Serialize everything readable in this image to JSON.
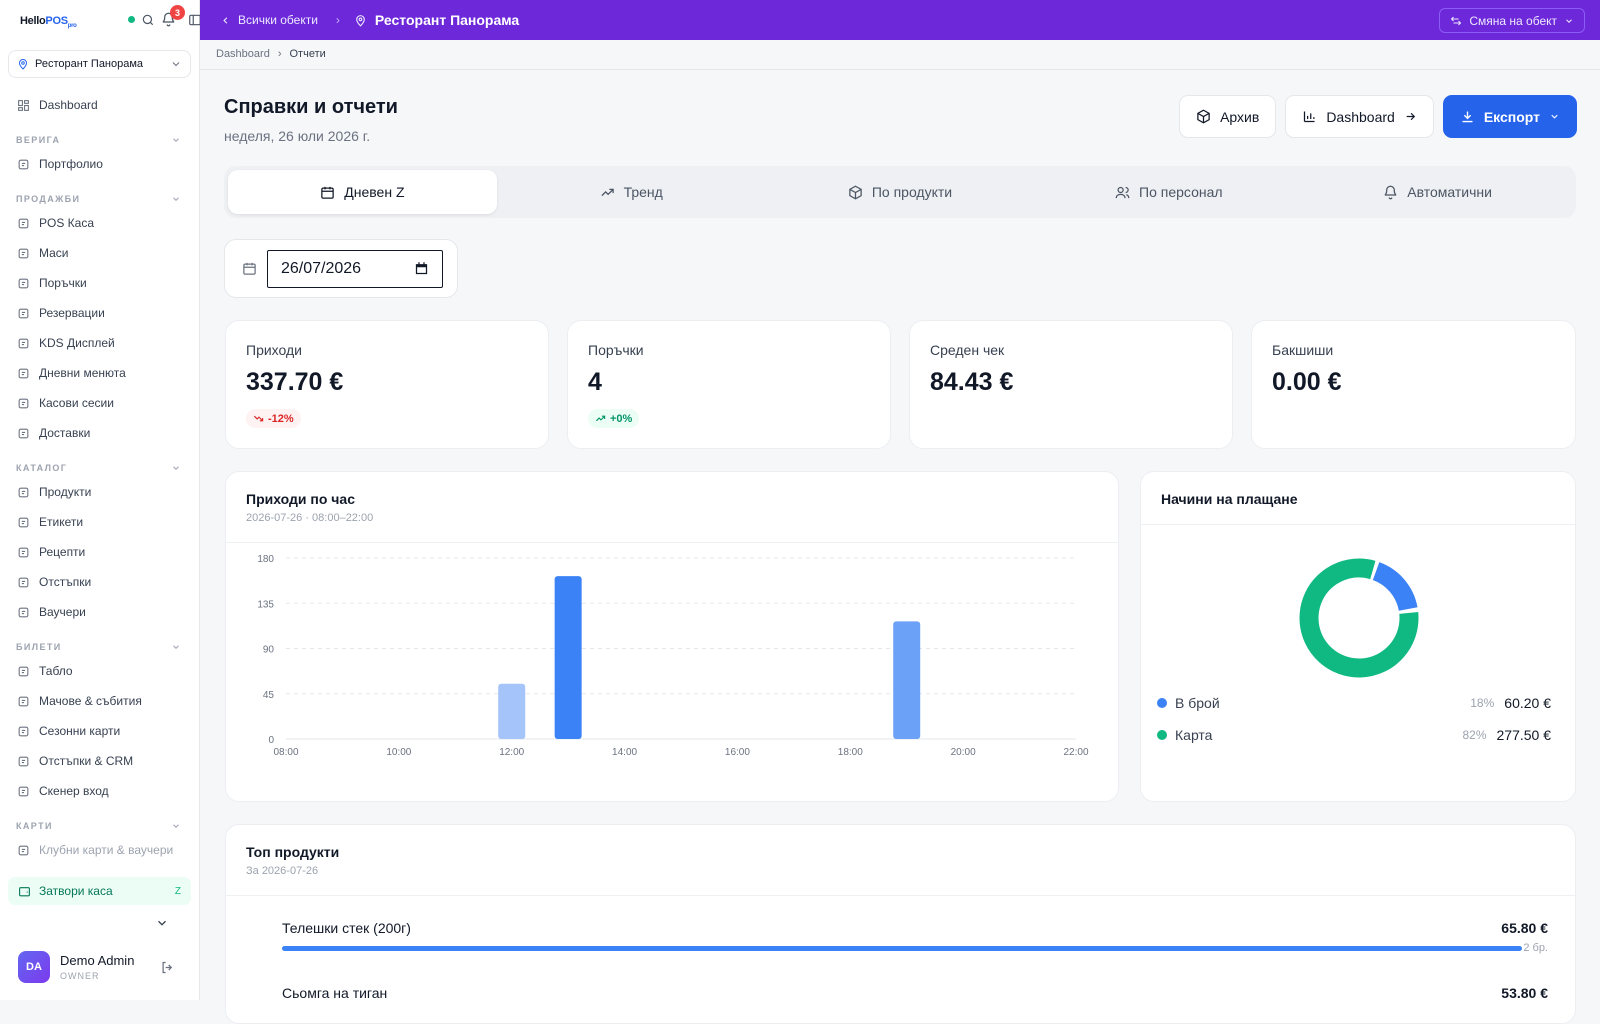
{
  "sidebar": {
    "logo": {
      "a": "Hello",
      "b": "POS",
      "c": "pro"
    },
    "notif_count": "3",
    "venue": "Ресторант Панорама",
    "dashboard": "Dashboard",
    "sections": [
      {
        "title": "ВЕРИГА",
        "items": [
          "Портфолио"
        ]
      },
      {
        "title": "ПРОДАЖБИ",
        "items": [
          "POS Каса",
          "Маси",
          "Поръчки",
          "Резервации",
          "KDS Дисплей",
          "Дневни менюта",
          "Касови сесии",
          "Доставки"
        ]
      },
      {
        "title": "КАТАЛОГ",
        "items": [
          "Продукти",
          "Етикети",
          "Рецепти",
          "Отстъпки",
          "Ваучери"
        ]
      },
      {
        "title": "БИЛЕТИ",
        "items": [
          "Табло",
          "Мачове & събития",
          "Сезонни карти",
          "Отстъпки & CRM",
          "Скенер вход"
        ]
      },
      {
        "title": "КАРТИ",
        "items": [
          "Клубни карти & ваучери"
        ]
      }
    ],
    "close_register": "Затвори каса",
    "close_register_key": "Z",
    "user": {
      "initials": "DA",
      "name": "Demo Admin",
      "role": "OWNER"
    }
  },
  "topbar": {
    "back": "Всички обекти",
    "title": "Ресторант Панорама",
    "switch": "Смяна на обект"
  },
  "breadcrumb": {
    "root": "Dashboard",
    "current": "Отчети"
  },
  "page": {
    "title": "Справки и отчети",
    "date": "неделя, 26 юли 2026 г.",
    "buttons": {
      "archive": "Архив",
      "dashboard": "Dashboard",
      "export": "Експорт"
    }
  },
  "tabs": [
    "Дневен Z",
    "Тренд",
    "По продукти",
    "По персонал",
    "Автоматични"
  ],
  "date_input": "26/07/2026",
  "kpis": [
    {
      "label": "Приходи",
      "value": "337.70 €",
      "delta": "-12%",
      "trend": "down"
    },
    {
      "label": "Поръчки",
      "value": "4",
      "delta": "+0%",
      "trend": "up"
    },
    {
      "label": "Среден чек",
      "value": "84.43 €",
      "delta": "",
      "trend": ""
    },
    {
      "label": "Бакшиши",
      "value": "0.00 €",
      "delta": "",
      "trend": ""
    }
  ],
  "hourly": {
    "title": "Приходи по час",
    "subtitle": "2026-07-26 · 08:00–22:00"
  },
  "chart_data": {
    "type": "bar",
    "title": "Приходи по час",
    "x": [
      12,
      13,
      19
    ],
    "values": [
      55,
      162,
      117
    ],
    "colors": [
      "#a5c4f9",
      "#3b82f6",
      "#6ba1f7"
    ],
    "xlim": [
      8,
      22
    ],
    "xticks": [
      "08:00",
      "10:00",
      "12:00",
      "14:00",
      "16:00",
      "18:00",
      "20:00",
      "22:00"
    ],
    "ylim": [
      0,
      180
    ],
    "yticks": [
      0,
      45,
      90,
      135,
      180
    ],
    "grid": true
  },
  "payments": {
    "title": "Начини на плащане",
    "items": [
      {
        "name": "В брой",
        "pct": "18%",
        "share": 0.178,
        "amount": "60.20 €",
        "color": "#3b82f6"
      },
      {
        "name": "Карта",
        "pct": "82%",
        "share": 0.822,
        "amount": "277.50 €",
        "color": "#10b981"
      }
    ]
  },
  "top_products": {
    "title": "Топ продукти",
    "subtitle": "За 2026-07-26",
    "items": [
      {
        "name": "Телешки стек (200г)",
        "amount": "65.80 €",
        "qty": "2 бр.",
        "fill": 1.0
      },
      {
        "name": "Сьомга на тиган",
        "amount": "53.80 €",
        "qty": "",
        "fill": 0.82
      }
    ]
  }
}
